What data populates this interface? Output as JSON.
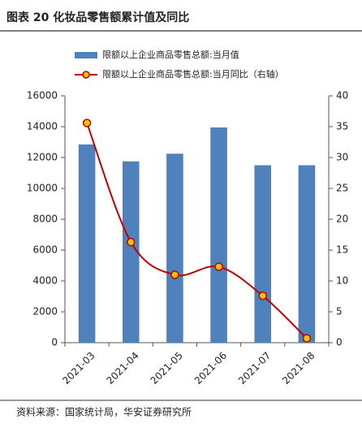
{
  "chart_data": {
    "type": "bar_line",
    "title": "图表 20  化妆品零售额累计值及同比",
    "source": "资料来源：国家统计局，华安证券研究所",
    "categories": [
      "2021-03",
      "2021-04",
      "2021-05",
      "2021-06",
      "2021-07",
      "2021-08"
    ],
    "series": [
      {
        "name": "限额以上企业商品零售总额:当月值",
        "type": "bar",
        "color": "#4f81bd",
        "values": [
          12850,
          11750,
          12250,
          13950,
          11500,
          11500
        ]
      },
      {
        "name": "限额以上企业商品零售总额:当月同比（右轴）",
        "type": "line",
        "axis": "y2",
        "color": "#c00000",
        "marker_color": "#ffc000",
        "values": [
          35.6,
          16.3,
          11.0,
          12.3,
          7.6,
          0.7
        ]
      }
    ],
    "ylim": [
      0,
      16000
    ],
    "yticks": [
      0,
      2000,
      4000,
      6000,
      8000,
      10000,
      12000,
      14000,
      16000
    ],
    "y2lim": [
      0,
      40
    ],
    "y2ticks": [
      0,
      5,
      10,
      15,
      20,
      25,
      30,
      35,
      40
    ]
  }
}
